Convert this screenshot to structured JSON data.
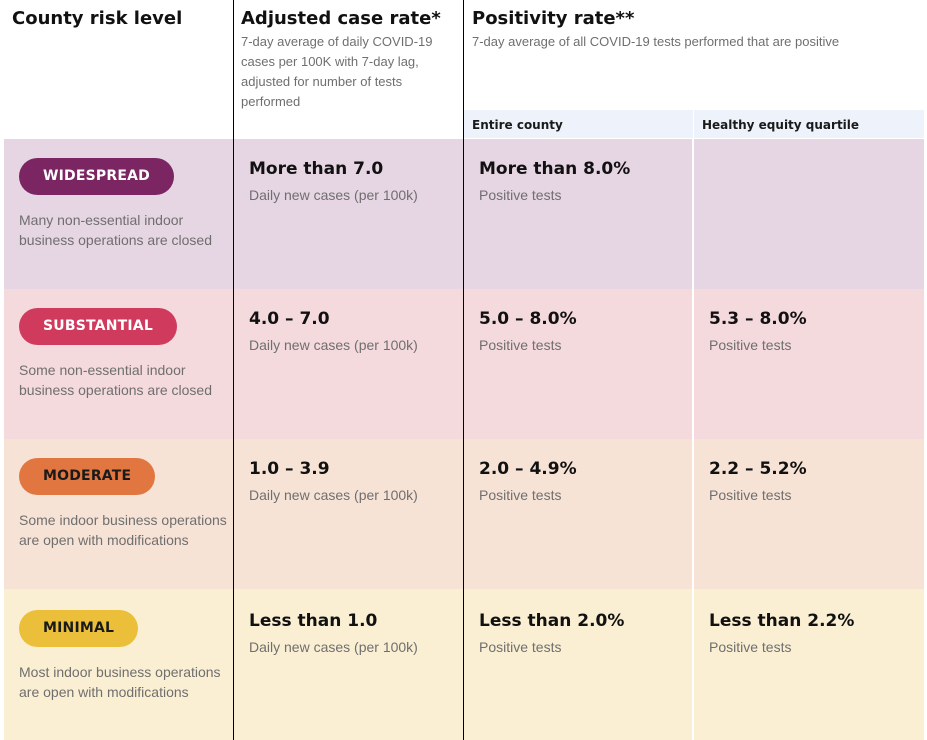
{
  "header": {
    "risk_title": "County risk level",
    "case_title": "Adjusted case rate*",
    "case_sub": "7-day average of daily COVID-19 cases per 100K with 7-day lag, adjusted for number of tests performed",
    "pos_title": "Positivity rate**",
    "pos_sub": "7-day average of all COVID-19 tests performed that are positive",
    "entire_county": "Entire county",
    "equity_quartile": "Healthy equity quartile"
  },
  "tiers": [
    {
      "label": "WIDESPREAD",
      "description": "Many non-essential indoor business operations are closed",
      "case_rate": "More than 7.0",
      "case_unit": "Daily new cases (per 100k)",
      "pos_county": "More than 8.0%",
      "pos_county_unit": "Positive tests",
      "pos_equity": "",
      "pos_equity_unit": "",
      "row_bg": "#e6d5e3",
      "pill_bg": "#7b2563",
      "pill_fg": "#ffffff"
    },
    {
      "label": "SUBSTANTIAL",
      "description": "Some non-essential indoor business operations are closed",
      "case_rate": "4.0 – 7.0",
      "case_unit": "Daily new cases (per 100k)",
      "pos_county": "5.0 – 8.0%",
      "pos_county_unit": "Positive tests",
      "pos_equity": "5.3 – 8.0%",
      "pos_equity_unit": "Positive tests",
      "row_bg": "#f4d9dd",
      "pill_bg": "#cf3a5d",
      "pill_fg": "#ffffff"
    },
    {
      "label": "MODERATE",
      "description": "Some indoor business operations are open with modifications",
      "case_rate": "1.0 – 3.9",
      "case_unit": "Daily new cases (per 100k)",
      "pos_county": "2.0 – 4.9%",
      "pos_county_unit": "Positive tests",
      "pos_equity": "2.2 – 5.2%",
      "pos_equity_unit": "Positive tests",
      "row_bg": "#f7e3d6",
      "pill_bg": "#e27641",
      "pill_fg": "#1a1a1a"
    },
    {
      "label": "MINIMAL",
      "description": "Most indoor business operations are open with modifications",
      "case_rate": "Less than 1.0",
      "case_unit": "Daily new cases (per 100k)",
      "pos_county": "Less than 2.0%",
      "pos_county_unit": "Positive tests",
      "pos_equity": "Less than 2.2%",
      "pos_equity_unit": "Positive tests",
      "row_bg": "#fbefd3",
      "pill_bg": "#ebbf3a",
      "pill_fg": "#1a1a1a"
    }
  ]
}
